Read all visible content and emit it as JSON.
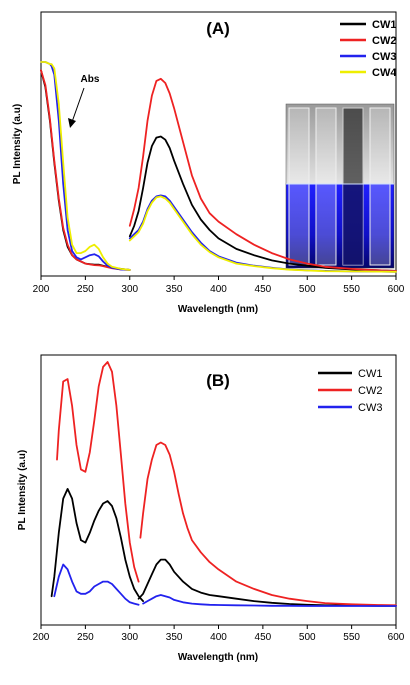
{
  "chart_data": [
    {
      "type": "line",
      "panel_label": "(A)",
      "xlabel": "Wavelength (nm)",
      "ylabel": "PL Intensity (a.u)",
      "xlim": [
        200,
        600
      ],
      "xticks": [
        "200",
        "250",
        "300",
        "350",
        "400",
        "450",
        "500",
        "550",
        "600"
      ],
      "legend_position": "top-right",
      "annotation": "Abs",
      "inset": "photo of four vials under room light (top) and UV light (bottom)",
      "series": [
        {
          "name": "CW1",
          "color": "#000000",
          "abs": {
            "x": [
              200,
              205,
              210,
              215,
              220,
              225,
              230,
              235,
              240,
              250,
              260,
              265,
              270,
              280,
              290,
              300
            ],
            "y": [
              0.96,
              0.88,
              0.72,
              0.52,
              0.34,
              0.2,
              0.12,
              0.08,
              0.06,
              0.04,
              0.035,
              0.035,
              0.03,
              0.02,
              0.015,
              0.01
            ]
          },
          "pl": {
            "x": [
              300,
              305,
              310,
              315,
              320,
              325,
              330,
              335,
              340,
              345,
              350,
              360,
              370,
              380,
              390,
              400,
              420,
              440,
              460,
              480,
              500,
              520,
              550,
              580,
              600
            ],
            "y": [
              0.17,
              0.22,
              0.29,
              0.4,
              0.52,
              0.6,
              0.64,
              0.645,
              0.63,
              0.59,
              0.53,
              0.42,
              0.32,
              0.25,
              0.2,
              0.16,
              0.11,
              0.08,
              0.055,
              0.04,
              0.03,
              0.02,
              0.012,
              0.008,
              0.005
            ]
          }
        },
        {
          "name": "CW2",
          "color": "#ee2222",
          "abs": {
            "x": [
              200,
              205,
              210,
              215,
              220,
              225,
              230,
              235,
              240,
              250,
              260,
              265,
              270,
              280,
              290,
              300
            ],
            "y": [
              0.96,
              0.89,
              0.73,
              0.53,
              0.35,
              0.21,
              0.13,
              0.08,
              0.06,
              0.04,
              0.033,
              0.032,
              0.028,
              0.018,
              0.012,
              0.01
            ]
          },
          "pl": {
            "x": [
              300,
              305,
              310,
              315,
              320,
              325,
              330,
              335,
              340,
              345,
              350,
              360,
              370,
              380,
              390,
              400,
              420,
              440,
              460,
              480,
              500,
              520,
              550,
              580,
              600
            ],
            "y": [
              0.22,
              0.3,
              0.4,
              0.55,
              0.72,
              0.84,
              0.91,
              0.92,
              0.9,
              0.85,
              0.78,
              0.62,
              0.46,
              0.35,
              0.28,
              0.24,
              0.18,
              0.13,
              0.09,
              0.06,
              0.04,
              0.025,
              0.015,
              0.008,
              0.005
            ]
          }
        },
        {
          "name": "CW3",
          "color": "#2222ee",
          "abs": {
            "x": [
              200,
              205,
              210,
              212,
              215,
              220,
              225,
              230,
              235,
              240,
              245,
              250,
              255,
              260,
              265,
              270,
              275,
              280,
              290,
              300
            ],
            "y": [
              1.0,
              1.0,
              0.99,
              0.98,
              0.94,
              0.72,
              0.42,
              0.2,
              0.1,
              0.07,
              0.06,
              0.07,
              0.08,
              0.085,
              0.075,
              0.05,
              0.03,
              0.02,
              0.012,
              0.01
            ]
          },
          "pl": {
            "x": [
              300,
              305,
              310,
              315,
              320,
              325,
              330,
              335,
              340,
              345,
              350,
              360,
              370,
              380,
              390,
              400,
              420,
              440,
              460,
              480,
              500,
              520,
              550,
              580,
              600
            ],
            "y": [
              0.16,
              0.18,
              0.2,
              0.24,
              0.3,
              0.34,
              0.36,
              0.365,
              0.36,
              0.34,
              0.31,
              0.25,
              0.19,
              0.14,
              0.1,
              0.075,
              0.045,
              0.03,
              0.02,
              0.012,
              0.008,
              0.005,
              0.003,
              0.002,
              0.001
            ]
          }
        },
        {
          "name": "CW4",
          "color": "#eeee00",
          "abs": {
            "x": [
              200,
              205,
              210,
              212,
              215,
              220,
              225,
              230,
              235,
              240,
              245,
              250,
              255,
              260,
              265,
              270,
              275,
              280,
              290,
              300
            ],
            "y": [
              1.0,
              1.0,
              0.99,
              0.99,
              0.97,
              0.8,
              0.52,
              0.26,
              0.13,
              0.09,
              0.09,
              0.1,
              0.12,
              0.13,
              0.11,
              0.07,
              0.04,
              0.025,
              0.015,
              0.01
            ]
          },
          "pl": {
            "x": [
              300,
              305,
              310,
              315,
              320,
              325,
              330,
              335,
              340,
              345,
              350,
              360,
              370,
              380,
              390,
              400,
              420,
              440,
              460,
              480,
              500,
              520,
              550,
              580,
              600
            ],
            "y": [
              0.15,
              0.17,
              0.19,
              0.23,
              0.29,
              0.33,
              0.355,
              0.36,
              0.35,
              0.33,
              0.3,
              0.24,
              0.18,
              0.13,
              0.095,
              0.07,
              0.04,
              0.028,
              0.018,
              0.011,
              0.007,
              0.004,
              0.003,
              0.002,
              0.001
            ]
          }
        }
      ]
    },
    {
      "type": "line",
      "panel_label": "(B)",
      "xlabel": "Wavelength (nm)",
      "ylabel": "PL Intensity (a.u)",
      "xlim": [
        200,
        600
      ],
      "xticks": [
        "200",
        "250",
        "300",
        "350",
        "400",
        "450",
        "500",
        "550",
        "600"
      ],
      "legend_position": "top-right",
      "series": [
        {
          "name": "CW1",
          "color": "#000000",
          "segments": [
            {
              "x": [
                212,
                215,
                220,
                225,
                230,
                235,
                240,
                245,
                250,
                255,
                260,
                265,
                270,
                275,
                280,
                285,
                290,
                295,
                300,
                305,
                310,
                315
              ],
              "y": [
                0.04,
                0.12,
                0.3,
                0.44,
                0.48,
                0.44,
                0.34,
                0.27,
                0.26,
                0.3,
                0.35,
                0.39,
                0.42,
                0.43,
                0.41,
                0.36,
                0.28,
                0.19,
                0.12,
                0.07,
                0.04,
                0.02
              ]
            },
            {
              "x": [
                310,
                315,
                320,
                325,
                330,
                335,
                340,
                345,
                350,
                360,
                370,
                380,
                390,
                400,
                420,
                440,
                460,
                480,
                500,
                520,
                550,
                580,
                600
              ],
              "y": [
                0.03,
                0.05,
                0.09,
                0.13,
                0.17,
                0.19,
                0.19,
                0.17,
                0.14,
                0.1,
                0.07,
                0.055,
                0.045,
                0.04,
                0.03,
                0.02,
                0.013,
                0.008,
                0.005,
                0.003,
                0.002,
                0.001,
                0.001
              ]
            }
          ]
        },
        {
          "name": "CW2",
          "color": "#ee2222",
          "segments": [
            {
              "x": [
                218,
                220,
                225,
                230,
                235,
                240,
                245,
                250,
                255,
                260,
                265,
                270,
                275,
                280,
                285,
                290,
                295,
                300,
                305,
                310
              ],
              "y": [
                0.6,
                0.72,
                0.92,
                0.93,
                0.82,
                0.66,
                0.56,
                0.55,
                0.63,
                0.76,
                0.9,
                0.98,
                1.0,
                0.96,
                0.82,
                0.62,
                0.42,
                0.26,
                0.16,
                0.1
              ]
            },
            {
              "x": [
                312,
                315,
                320,
                325,
                330,
                335,
                340,
                345,
                350,
                355,
                360,
                365,
                370,
                380,
                390,
                400,
                420,
                440,
                460,
                480,
                500,
                520,
                550,
                580,
                600
              ],
              "y": [
                0.28,
                0.38,
                0.52,
                0.6,
                0.66,
                0.67,
                0.66,
                0.62,
                0.55,
                0.46,
                0.38,
                0.32,
                0.27,
                0.22,
                0.18,
                0.15,
                0.1,
                0.07,
                0.045,
                0.03,
                0.02,
                0.012,
                0.007,
                0.004,
                0.003
              ]
            }
          ]
        },
        {
          "name": "CW3",
          "color": "#2222ee",
          "segments": [
            {
              "x": [
                215,
                220,
                225,
                230,
                235,
                240,
                245,
                250,
                255,
                260,
                265,
                270,
                275,
                280,
                285,
                290,
                295,
                300,
                305,
                310
              ],
              "y": [
                0.04,
                0.12,
                0.17,
                0.15,
                0.1,
                0.06,
                0.05,
                0.05,
                0.06,
                0.08,
                0.09,
                0.1,
                0.1,
                0.09,
                0.07,
                0.05,
                0.03,
                0.015,
                0.01,
                0.005
              ]
            },
            {
              "x": [
                315,
                320,
                325,
                330,
                335,
                340,
                345,
                350,
                360,
                370,
                380,
                390,
                400,
                420,
                440,
                460,
                480,
                500,
                600
              ],
              "y": [
                0.01,
                0.02,
                0.03,
                0.04,
                0.045,
                0.04,
                0.035,
                0.025,
                0.015,
                0.01,
                0.007,
                0.005,
                0.004,
                0.003,
                0.002,
                0.001,
                0.001,
                0.0,
                0.0
              ]
            }
          ]
        }
      ]
    }
  ]
}
